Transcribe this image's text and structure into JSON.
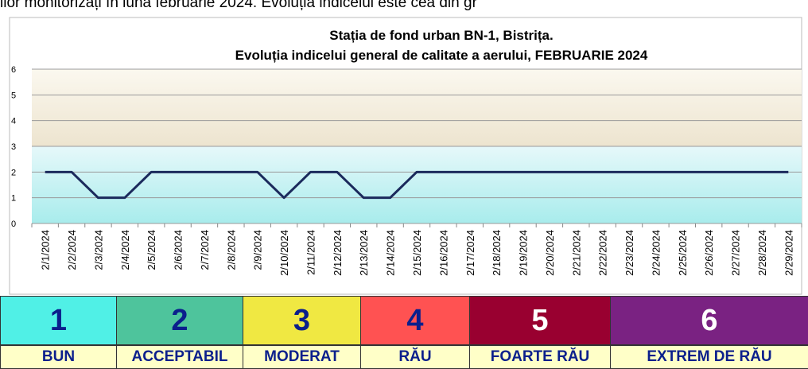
{
  "intro_text": "ilor monitorizați în luna februarie 2024. Evoluția indicelui este cea din gr",
  "chart_data": {
    "type": "line",
    "title": "Stația de fond urban BN-1, Bistrița.",
    "subtitle": "Evoluția indicelui general de calitate a aerului, FEBRUARIE 2024",
    "categories": [
      "2/1/2024",
      "2/2/2024",
      "2/3/2024",
      "2/4/2024",
      "2/5/2024",
      "2/6/2024",
      "2/7/2024",
      "2/8/2024",
      "2/9/2024",
      "2/10/2024",
      "2/11/2024",
      "2/12/2024",
      "2/13/2024",
      "2/14/2024",
      "2/15/2024",
      "2/16/2024",
      "2/17/2024",
      "2/18/2024",
      "2/19/2024",
      "2/20/2024",
      "2/21/2024",
      "2/22/2024",
      "2/23/2024",
      "2/24/2024",
      "2/25/2024",
      "2/26/2024",
      "2/27/2024",
      "2/28/2024",
      "2/29/2024"
    ],
    "values": [
      2,
      2,
      1,
      1,
      2,
      2,
      2,
      2,
      2,
      1,
      2,
      2,
      1,
      1,
      2,
      2,
      2,
      2,
      2,
      2,
      2,
      2,
      2,
      2,
      2,
      2,
      2,
      2,
      2
    ],
    "color": "#1b2a5c",
    "ylim": [
      0,
      6
    ],
    "yticks": [
      0,
      1,
      2,
      3,
      4,
      5,
      6
    ],
    "grid": true,
    "index_scale": [
      {
        "value": 1,
        "label": "BUN",
        "color": "#50f0e6",
        "text_color": "#0b1f8c"
      },
      {
        "value": 2,
        "label": "ACCEPTABIL",
        "color": "#4ec49c",
        "text_color": "#0b1f8c"
      },
      {
        "value": 3,
        "label": "MODERAT",
        "color": "#f0e842",
        "text_color": "#0b1f8c"
      },
      {
        "value": 4,
        "label": "RĂU",
        "color": "#ff5252",
        "text_color": "#0b1f8c"
      },
      {
        "value": 5,
        "label": "FOARTE RĂU",
        "color": "#990030",
        "text_color": "#ffffff"
      },
      {
        "value": 6,
        "label": "EXTREM DE RĂU",
        "color": "#7a2282",
        "text_color": "#ffffff"
      }
    ]
  }
}
